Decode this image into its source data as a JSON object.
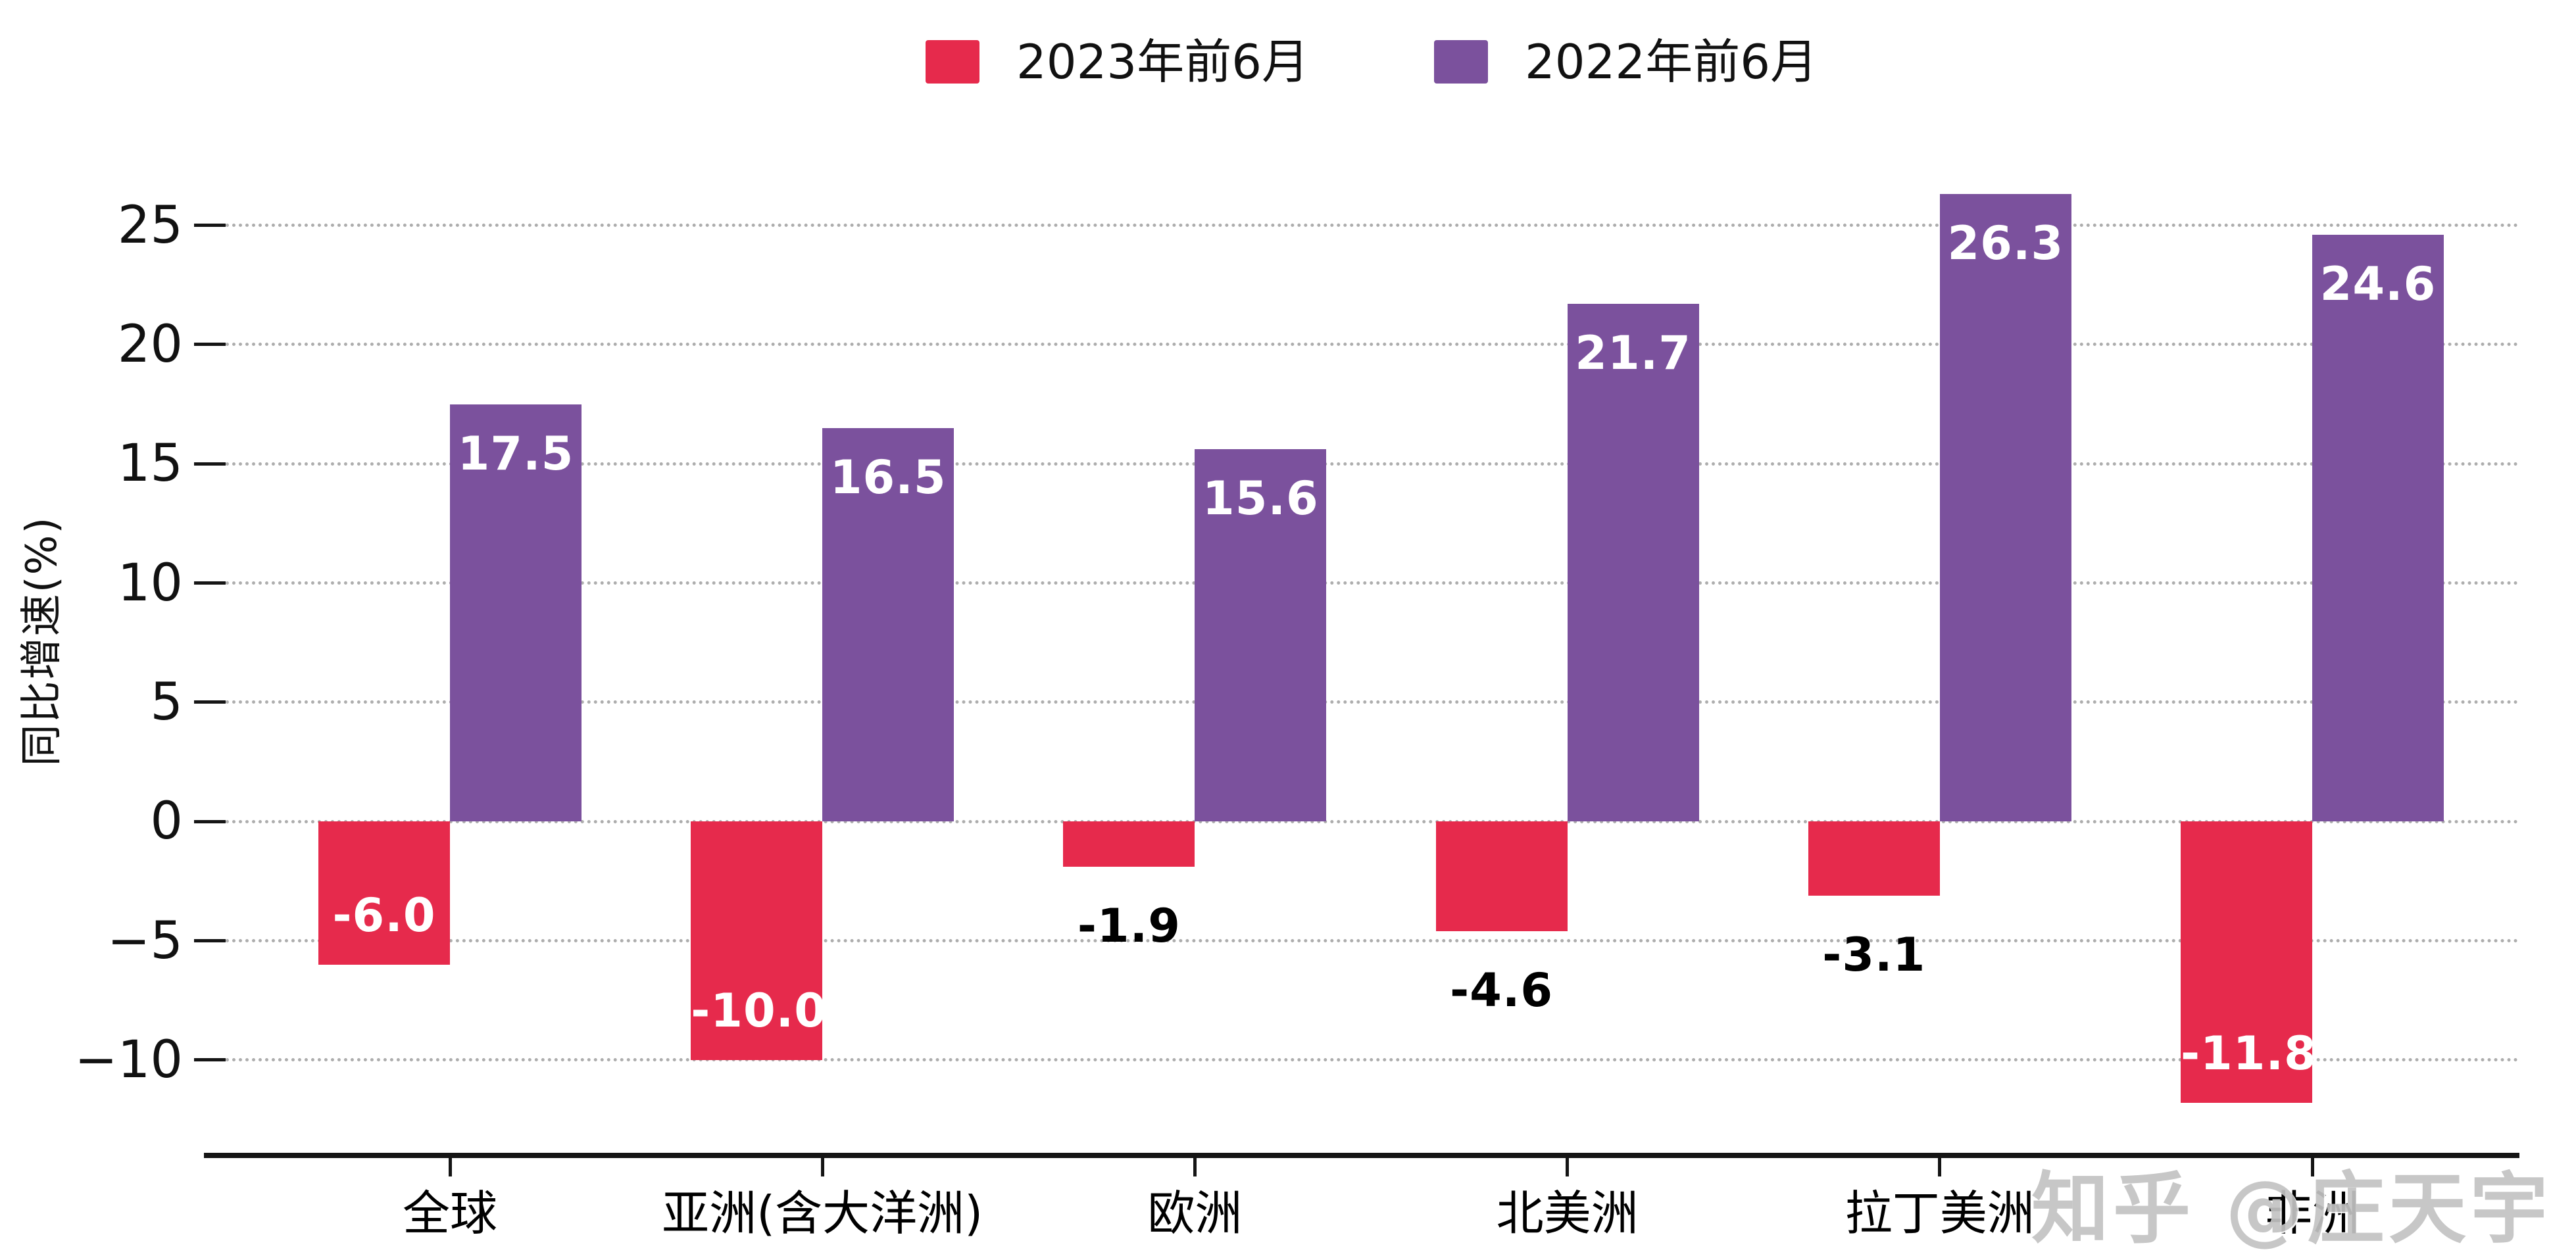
{
  "chart_data": {
    "type": "bar",
    "title": "",
    "xlabel": "",
    "ylabel": "同比增速(%)",
    "categories": [
      "全球",
      "亚洲(含大洋洲)",
      "欧洲",
      "北美洲",
      "拉丁美洲",
      "非洲"
    ],
    "series": [
      {
        "name": "2023年前6月",
        "color": "#E62A4C",
        "values": [
          -6.0,
          -10.0,
          -1.9,
          -4.6,
          -3.1,
          -11.8
        ],
        "labels": [
          "-6.0",
          "-10.0",
          "-1.9",
          "-4.6",
          "-3.1",
          "-11.8"
        ],
        "label_placement": [
          "inside",
          "inside",
          "outside",
          "outside",
          "outside",
          "inside"
        ]
      },
      {
        "name": "2022年前6月",
        "color": "#7B519D",
        "values": [
          17.5,
          16.5,
          15.6,
          21.7,
          26.3,
          24.6
        ],
        "labels": [
          "17.5",
          "16.5",
          "15.6",
          "21.7",
          "26.3",
          "24.6"
        ],
        "label_placement": [
          "inside",
          "inside",
          "inside",
          "inside",
          "inside",
          "inside"
        ]
      }
    ],
    "yticks": [
      -10,
      -5,
      0,
      5,
      10,
      15,
      20,
      25
    ],
    "ytick_labels": [
      "−10",
      "−5",
      "0",
      "5",
      "10",
      "15",
      "20",
      "25"
    ],
    "ylim": [
      -14,
      27
    ],
    "grid": "horizontal-dotted",
    "legend_position": "top-center"
  },
  "legend": {
    "items": [
      {
        "label": "2023年前6月",
        "color": "#E62A4C"
      },
      {
        "label": "2022年前6月",
        "color": "#7B519D"
      }
    ]
  },
  "watermark": {
    "text": "知乎 @庄天宇",
    "color": "#c3c3c3"
  },
  "colors": {
    "series_2023": "#E62A4C",
    "series_2022": "#7B519D",
    "gridline": "#adadad",
    "axis": "#151515",
    "text": "#111111",
    "bar_label_inside": "#ffffff",
    "bar_label_outside": "#000000"
  }
}
